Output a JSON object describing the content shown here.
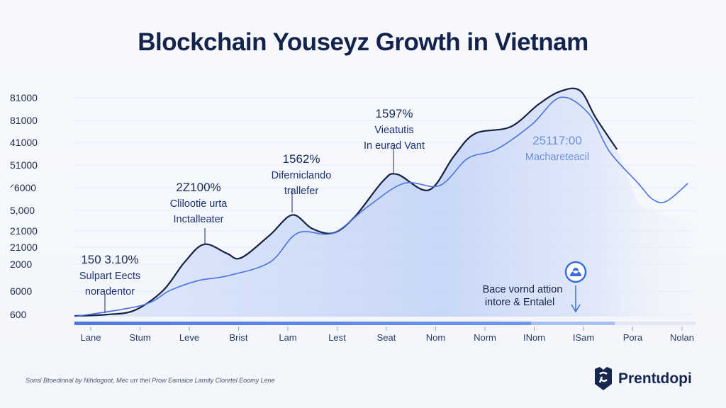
{
  "chart_data": {
    "type": "area",
    "title": "Blockchain Youseyz Growth in Vietnam",
    "y_tick_labels": [
      "81000",
      "81000",
      "41000",
      "51000",
      "ᐟ6000",
      "5,000",
      "21000",
      "21000",
      "2000",
      "6000",
      "600"
    ],
    "categories": [
      "Lane",
      "Stum",
      "Leve",
      "Brist",
      "Lam",
      "Lest",
      "Seat",
      "Nom",
      "Norm",
      "INom",
      "ISam",
      "Pora",
      "Nolan"
    ],
    "grid": true,
    "series": [
      {
        "color": "#15213f",
        "points": [
          [
            -0.33,
            0.3
          ],
          [
            0.32,
            0.9
          ],
          [
            0.89,
            2.8
          ],
          [
            1.47,
            11.6
          ],
          [
            1.9,
            24
          ],
          [
            2.3,
            32
          ],
          [
            2.76,
            28
          ],
          [
            3.05,
            26
          ],
          [
            3.63,
            36
          ],
          [
            4.09,
            45
          ],
          [
            4.49,
            39
          ],
          [
            4.92,
            37
          ],
          [
            5.35,
            44
          ],
          [
            5.93,
            60
          ],
          [
            6.22,
            63
          ],
          [
            6.86,
            56
          ],
          [
            7.37,
            71
          ],
          [
            7.8,
            81
          ],
          [
            8.52,
            84
          ],
          [
            9.09,
            94
          ],
          [
            9.53,
            99.7
          ],
          [
            9.93,
            100
          ],
          [
            10.25,
            88
          ],
          [
            10.68,
            74
          ]
        ]
      },
      {
        "color": "#4a72e0",
        "points": [
          [
            -0.33,
            0
          ],
          [
            1.04,
            5
          ],
          [
            1.61,
            11.6
          ],
          [
            2.19,
            16
          ],
          [
            2.76,
            18
          ],
          [
            3.63,
            24
          ],
          [
            4.2,
            37
          ],
          [
            4.92,
            37
          ],
          [
            5.64,
            49
          ],
          [
            6.36,
            59
          ],
          [
            7.08,
            58
          ],
          [
            7.65,
            70
          ],
          [
            8.23,
            74
          ],
          [
            8.95,
            85
          ],
          [
            9.53,
            97
          ],
          [
            10.1,
            90
          ],
          [
            10.53,
            73
          ],
          [
            11.11,
            59
          ],
          [
            11.4,
            52
          ],
          [
            11.68,
            51
          ],
          [
            12.12,
            59
          ]
        ]
      }
    ],
    "annotations": [
      {
        "value": "150 3.10%",
        "line1": "Sulpart Eects",
        "line2": "noradentor"
      },
      {
        "value": "2Z100%",
        "line1": "Clilootie urta",
        "line2": "Inctalleater"
      },
      {
        "value": "1562%",
        "line1": "Diferniclando",
        "line2": "trallefer"
      },
      {
        "value": "1597%",
        "line1": "Vieatutis",
        "line2": "In eurad Vant"
      },
      {
        "value": "25117:00",
        "line1": "Machareteacil"
      },
      {
        "line1": "Bace vornd attion",
        "line2": "intore & Entalel"
      }
    ],
    "progress": 0.87,
    "colors": {
      "dark_line": "#15213f",
      "blue_line": "#4a72e0",
      "fill": "#c9d8f7",
      "title": "#13234b"
    }
  },
  "source": "Sonsl Btoedinnal by Nihdogoot, Mec urr thel Prow Eamaice Lamity Clonrtel Eoomy Lene",
  "logo": {
    "text": "Prentɩdopi"
  }
}
